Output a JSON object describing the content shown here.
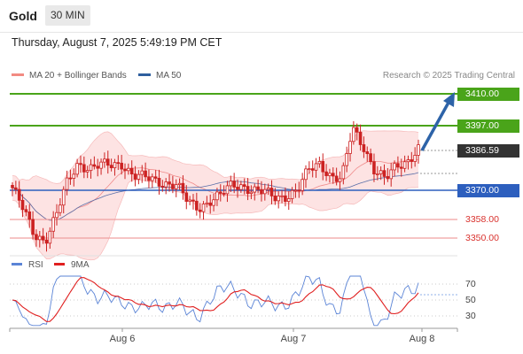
{
  "header": {
    "symbol": "Gold",
    "timeframe": "30 MIN",
    "datetime": "Thursday, August 7, 2025 5:49:19 PM CET"
  },
  "legend": {
    "items": [
      {
        "label": "MA 20 + Bollinger Bands",
        "color": "#f28b82"
      },
      {
        "label": "MA 50",
        "color": "#2f5f9e"
      }
    ],
    "credit": "Research © 2025 Trading Central"
  },
  "levels": {
    "resistance": [
      "3410.00",
      "3397.00"
    ],
    "pivot": "3370.00",
    "supports": [
      "3358.00",
      "3350.00"
    ],
    "last_price": "3386.59"
  },
  "rsi_panel": {
    "legend": [
      {
        "label": "RSI",
        "color": "#5b84d6"
      },
      {
        "label": "9MA",
        "color": "#e02020"
      }
    ],
    "ticks": [
      "70",
      "50",
      "30"
    ]
  },
  "x_axis": {
    "labels": [
      "Aug 6",
      "Aug 7",
      "Aug 8"
    ]
  },
  "colors": {
    "resistance": "#4aa41a",
    "pivot": "#2d5fbe",
    "support": "#e35656",
    "candle": "#cc2222",
    "arrow": "#2d63a8",
    "last_price_box": "#333333",
    "band_fill": "#fde3e3"
  },
  "chart_data": {
    "type": "candlestick",
    "price_axis_labels": [
      "3410.00",
      "3397.00",
      "3386.59",
      "3370.00",
      "3358.00",
      "3350.00"
    ],
    "x_tick_labels": [
      "Aug 6",
      "Aug 7",
      "Aug 8"
    ],
    "approximate_close_path": [
      3371,
      3362,
      3352,
      3350,
      3360,
      3373,
      3381,
      3379,
      3380,
      3380,
      3381,
      3376,
      3375,
      3374,
      3373,
      3372,
      3365,
      3363,
      3366,
      3368,
      3372,
      3372,
      3370,
      3369,
      3367,
      3368,
      3370,
      3378,
      3381,
      3376,
      3374,
      3395,
      3388,
      3378,
      3374,
      3380,
      3382,
      3386.59
    ],
    "rsi_ticks": [
      70,
      50,
      30
    ],
    "forecast": "arrow from last price toward 3410.00"
  }
}
